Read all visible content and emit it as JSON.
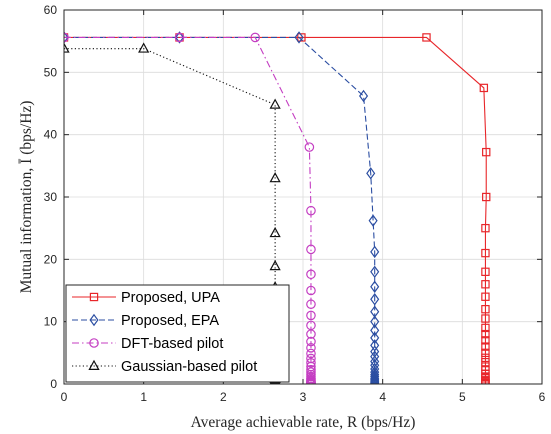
{
  "chart_data": {
    "type": "line",
    "xlabel": "Average achievable rate, R (bps/Hz)",
    "ylabel": "Mutual information, Ī (bps/Hz)",
    "xlim": [
      0,
      6
    ],
    "ylim": [
      0,
      60
    ],
    "xticks": [
      "0",
      "1",
      "2",
      "3",
      "4",
      "5",
      "6"
    ],
    "yticks": [
      "0",
      "10",
      "20",
      "30",
      "40",
      "50",
      "60"
    ],
    "grid": true,
    "legend_position": "bottom-left",
    "series": [
      {
        "name": "Proposed, UPA",
        "color": "#e8262a",
        "dash": "solid",
        "marker": "square",
        "x": [
          0,
          1.45,
          2.98,
          4.55,
          5.27,
          5.3,
          5.3,
          5.29,
          5.29,
          5.29,
          5.29,
          5.29,
          5.29,
          5.29,
          5.29,
          5.29,
          5.29,
          5.29,
          5.29,
          5.29,
          5.29,
          5.29,
          5.29,
          5.29,
          5.29,
          5.29,
          5.29,
          5.29,
          5.29,
          5.29,
          5.29
        ],
        "y": [
          55.6,
          55.6,
          55.6,
          55.6,
          47.5,
          37.2,
          30.0,
          25.0,
          21.0,
          18.0,
          16.0,
          14.0,
          12.0,
          10.5,
          9.0,
          8.0,
          7.0,
          6.0,
          5.0,
          4.2,
          3.5,
          2.8,
          2.2,
          1.6,
          1.2,
          0.9,
          0.6,
          0.4,
          0.2,
          0.1,
          0.0
        ]
      },
      {
        "name": "Proposed, EPA",
        "color": "#2b4ea2",
        "dash": "dashed",
        "marker": "diamond",
        "x": [
          0,
          1.45,
          2.95,
          3.76,
          3.85,
          3.88,
          3.9,
          3.9,
          3.9,
          3.9,
          3.9,
          3.9,
          3.9,
          3.9,
          3.9,
          3.9,
          3.9,
          3.9,
          3.9,
          3.9,
          3.9,
          3.9,
          3.9,
          3.9,
          3.9,
          3.9,
          3.9,
          3.9,
          3.9,
          3.9,
          3.9
        ],
        "y": [
          55.6,
          55.6,
          55.6,
          46.2,
          33.8,
          26.2,
          21.2,
          18.0,
          15.6,
          13.6,
          11.6,
          10.0,
          8.6,
          7.4,
          6.2,
          5.2,
          4.4,
          3.6,
          3.0,
          2.4,
          1.9,
          1.5,
          1.2,
          0.9,
          0.7,
          0.5,
          0.35,
          0.25,
          0.15,
          0.05,
          0.0
        ]
      },
      {
        "name": "DFT-based pilot",
        "color": "#c43ec2",
        "dash": "dashdot",
        "marker": "circle",
        "x": [
          0,
          1.45,
          2.4,
          3.08,
          3.1,
          3.1,
          3.1,
          3.1,
          3.1,
          3.1,
          3.1,
          3.1,
          3.1,
          3.1,
          3.1,
          3.1,
          3.1,
          3.1,
          3.1,
          3.1,
          3.1,
          3.1,
          3.1,
          3.1,
          3.1,
          3.1,
          3.1,
          3.1,
          3.1,
          3.1,
          3.1
        ],
        "y": [
          55.6,
          55.6,
          55.6,
          38.0,
          27.8,
          21.6,
          17.6,
          15.0,
          12.8,
          11.0,
          9.4,
          8.0,
          6.8,
          5.8,
          4.9,
          4.1,
          3.4,
          2.8,
          2.3,
          1.9,
          1.5,
          1.2,
          0.9,
          0.7,
          0.5,
          0.35,
          0.25,
          0.15,
          0.1,
          0.05,
          0.0
        ]
      },
      {
        "name": "Gaussian-based pilot",
        "color": "#111111",
        "dash": "dotted",
        "marker": "triangle",
        "x": [
          0,
          1.0,
          2.65,
          2.65,
          2.65,
          2.65,
          2.65,
          2.65,
          2.65,
          2.65,
          2.65,
          2.65,
          2.65,
          2.65,
          2.65,
          2.65,
          2.65,
          2.65,
          2.65,
          2.65,
          2.65,
          2.65,
          2.65,
          2.65,
          2.65,
          2.65,
          2.65,
          2.65,
          2.65,
          2.65,
          2.65
        ],
        "y": [
          53.8,
          53.8,
          44.8,
          33.0,
          24.2,
          18.9,
          15.5,
          13.2,
          11.4,
          9.8,
          8.4,
          7.2,
          6.1,
          5.1,
          4.3,
          3.6,
          3.0,
          2.5,
          2.0,
          1.6,
          1.3,
          1.0,
          0.8,
          0.6,
          0.45,
          0.3,
          0.2,
          0.12,
          0.07,
          0.03,
          0.0
        ]
      }
    ]
  }
}
